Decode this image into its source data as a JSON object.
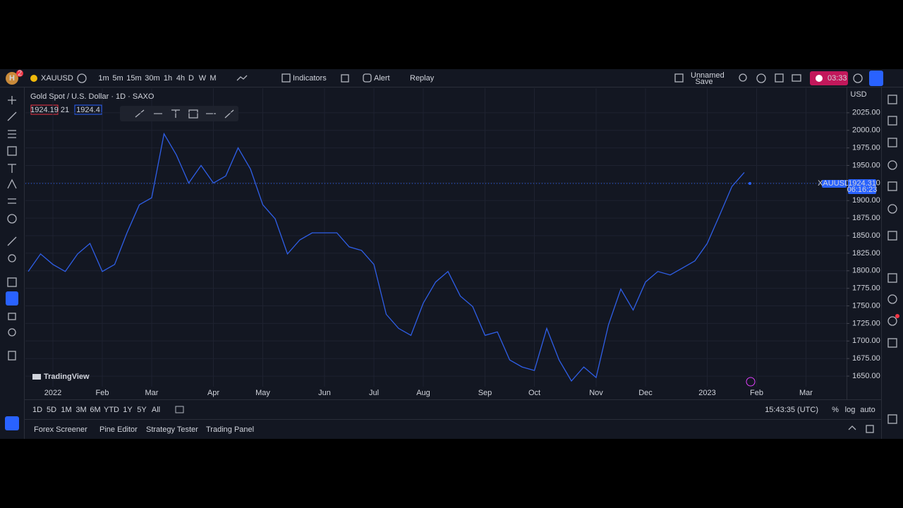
{
  "toolbar": {
    "avatar": "H",
    "badge": "2",
    "symbol": "XAUUSD",
    "intervals": [
      "1m",
      "5m",
      "15m",
      "30m",
      "1h",
      "4h",
      "D",
      "W",
      "M"
    ],
    "indicators": "Indicators",
    "alert": "Alert",
    "replay": "Replay",
    "layout_name": "Unnamed",
    "save": "Save",
    "record_time": "03:33"
  },
  "chart_data": {
    "type": "line",
    "title": "Gold Spot / U.S. Dollar · 1D · SAXO",
    "bid": 1924.19,
    "spread": 21,
    "ask": 1924.4,
    "currency": "USD",
    "watermark": "TradingView",
    "categories": [
      null,
      null,
      "2022",
      null,
      null,
      null,
      "Feb",
      null,
      null,
      null,
      "Mar",
      null,
      null,
      null,
      null,
      "Apr",
      null,
      null,
      null,
      "May",
      null,
      null,
      null,
      null,
      "Jun",
      null,
      null,
      null,
      "Jul",
      null,
      null,
      null,
      "Aug",
      null,
      null,
      null,
      null,
      "Sep",
      null,
      null,
      null,
      "Oct",
      null,
      null,
      null,
      null,
      "Nov",
      null,
      null,
      null,
      "Dec",
      null,
      null,
      null,
      null,
      "2023",
      null,
      null,
      null,
      "Feb",
      null,
      null,
      null,
      "Mar",
      null,
      null,
      null
    ],
    "series": [
      {
        "name": "XAUUSD",
        "color": "#2f5fe8",
        "values": [
          1799,
          1824,
          1809,
          1799,
          1824,
          1839,
          1799,
          1809,
          1854,
          1894,
          1904,
          1995,
          1965,
          1925,
          1950,
          1925,
          1935,
          1975,
          1945,
          1894,
          1874,
          1824,
          1844,
          1854,
          1854,
          1854,
          1834,
          1829,
          1809,
          1738,
          1718,
          1708,
          1754,
          1784,
          1799,
          1764,
          1749,
          1708,
          1713,
          1673,
          1663,
          1658,
          1718,
          1673,
          1643,
          1663,
          1648,
          1723,
          1774,
          1744,
          1784,
          1799,
          1794,
          1804,
          1814,
          1839,
          1879,
          1920,
          1940,
          null,
          null,
          null,
          null,
          null,
          null,
          null,
          null
        ]
      }
    ],
    "last_price": {
      "symbol": "XAUUSD",
      "value": 1924.31,
      "countdown": "06:16:23"
    },
    "ylim": [
      1635,
      2060
    ],
    "yticks": [
      {
        "value": 1650,
        "label": "1650.00"
      },
      {
        "value": 1675,
        "label": "1675.00"
      },
      {
        "value": 1700,
        "label": "1700.00"
      },
      {
        "value": 1725,
        "label": "1725.00"
      },
      {
        "value": 1750,
        "label": "1750.00"
      },
      {
        "value": 1775,
        "label": "1775.00"
      },
      {
        "value": 1800,
        "label": "1800.00"
      },
      {
        "value": 1825,
        "label": "1825.00"
      },
      {
        "value": 1850,
        "label": "1850.00"
      },
      {
        "value": 1875,
        "label": "1875.00"
      },
      {
        "value": 1900,
        "label": "1900.00"
      },
      {
        "value": 1925,
        "label": "1925.00"
      },
      {
        "value": 1950,
        "label": "1950.00"
      },
      {
        "value": 1975,
        "label": "1975.00"
      },
      {
        "value": 2000,
        "label": "2000.00"
      },
      {
        "value": 2025,
        "label": "2025.00"
      }
    ],
    "grid": true
  },
  "range_bar": {
    "ranges": [
      "1D",
      "5D",
      "1M",
      "3M",
      "6M",
      "YTD",
      "1Y",
      "5Y",
      "All"
    ],
    "clock": "15:43:35 (UTC)",
    "percent": "%",
    "log": "log",
    "auto": "auto"
  },
  "panel_tabs": [
    "Forex Screener",
    "Pine Editor",
    "Strategy Tester",
    "Trading Panel"
  ]
}
